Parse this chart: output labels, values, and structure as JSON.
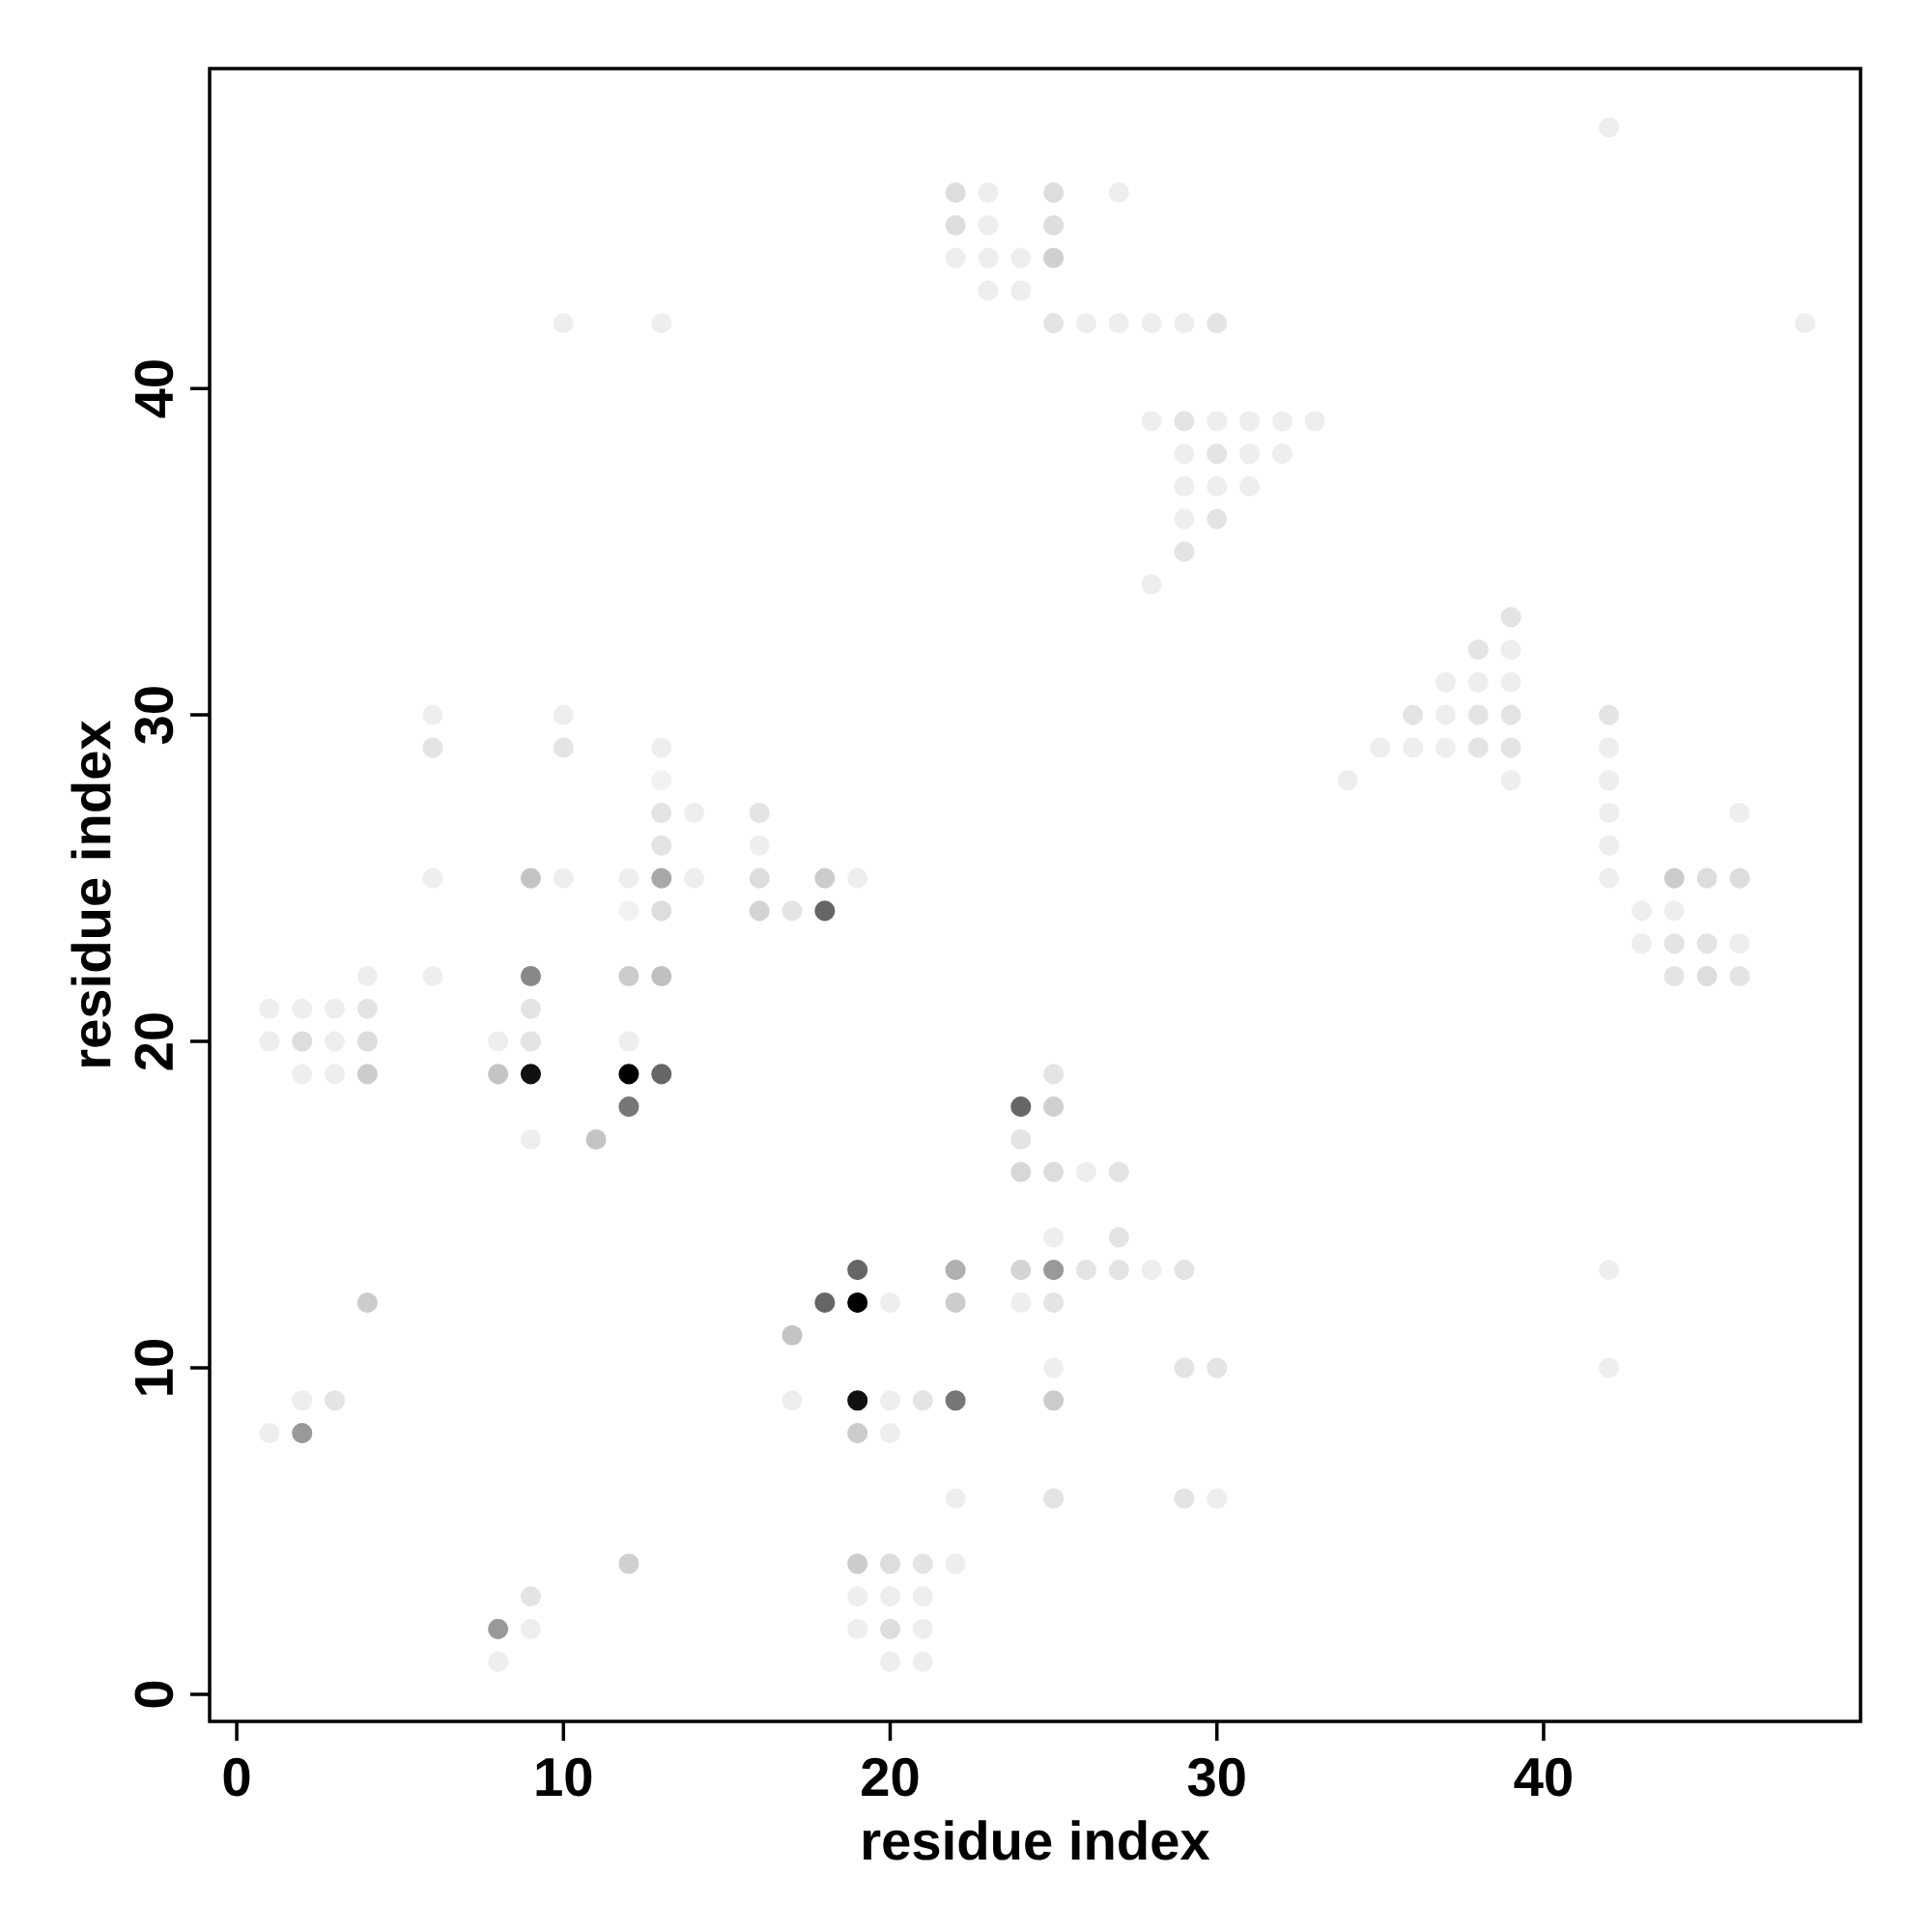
{
  "chart_data": {
    "type": "scatter",
    "xlabel": "residue index",
    "ylabel": "residue index",
    "xlim": [
      -0.83,
      49.7
    ],
    "ylim": [
      -0.83,
      49.8
    ],
    "xticks": [
      0,
      10,
      20,
      30,
      40
    ],
    "yticks": [
      0,
      10,
      20,
      30,
      40
    ],
    "x": [
      42,
      22,
      23,
      25,
      27,
      22,
      23,
      25,
      22,
      23,
      24,
      25,
      23,
      24,
      10,
      13,
      25,
      26,
      27,
      28,
      29,
      30,
      48,
      28,
      29,
      30,
      31,
      32,
      33,
      29,
      30,
      31,
      32,
      29,
      30,
      31,
      29,
      30,
      29,
      28,
      39,
      38,
      39,
      37,
      38,
      39,
      6,
      10,
      36,
      37,
      38,
      39,
      42,
      6,
      10,
      13,
      35,
      36,
      37,
      38,
      39,
      42,
      13,
      34,
      39,
      42,
      13,
      14,
      16,
      42,
      46,
      13,
      16,
      42,
      6,
      9,
      10,
      12,
      13,
      14,
      16,
      18,
      19,
      42,
      44,
      45,
      46,
      12,
      13,
      16,
      17,
      18,
      43,
      44,
      43,
      44,
      45,
      46,
      4,
      6,
      9,
      12,
      13,
      44,
      45,
      46,
      1,
      2,
      3,
      4,
      9,
      1,
      2,
      3,
      4,
      8,
      9,
      12,
      2,
      3,
      4,
      8,
      9,
      12,
      13,
      25,
      12,
      24,
      25,
      9,
      11,
      24,
      24,
      25,
      26,
      27,
      25,
      27,
      19,
      22,
      24,
      25,
      26,
      27,
      28,
      29,
      42,
      4,
      18,
      19,
      20,
      22,
      24,
      25,
      17,
      25,
      29,
      30,
      42,
      2,
      3,
      17,
      19,
      20,
      21,
      22,
      25,
      1,
      2,
      19,
      20,
      22,
      25,
      29,
      30,
      12,
      19,
      20,
      21,
      22,
      9,
      19,
      20,
      21,
      8,
      9,
      19,
      20,
      21,
      8,
      20,
      21
    ],
    "values": [
      48,
      46,
      46,
      46,
      46,
      45,
      45,
      45,
      44,
      44,
      44,
      44,
      43,
      43,
      42,
      42,
      42,
      42,
      42,
      42,
      42,
      42,
      42,
      39,
      39,
      39,
      39,
      39,
      39,
      38,
      38,
      38,
      38,
      37,
      37,
      37,
      36,
      36,
      35,
      34,
      33,
      32,
      32,
      31,
      31,
      31,
      30,
      30,
      30,
      30,
      30,
      30,
      30,
      29,
      29,
      29,
      29,
      29,
      29,
      29,
      29,
      29,
      28,
      28,
      28,
      28,
      27,
      27,
      27,
      27,
      27,
      26,
      26,
      26,
      25,
      25,
      25,
      25,
      25,
      25,
      25,
      25,
      25,
      25,
      25,
      25,
      25,
      24,
      24,
      24,
      24,
      24,
      24,
      24,
      23,
      23,
      23,
      23,
      22,
      22,
      22,
      22,
      22,
      22,
      22,
      22,
      21,
      21,
      21,
      21,
      21,
      20,
      20,
      20,
      20,
      20,
      20,
      20,
      19,
      19,
      19,
      19,
      19,
      19,
      19,
      19,
      18,
      18,
      18,
      17,
      17,
      17,
      16,
      16,
      16,
      16,
      14,
      14,
      13,
      13,
      13,
      13,
      13,
      13,
      13,
      13,
      13,
      12,
      12,
      12,
      12,
      12,
      12,
      12,
      11,
      10,
      10,
      10,
      10,
      9,
      9,
      9,
      9,
      9,
      9,
      9,
      9,
      8,
      8,
      8,
      8,
      6,
      6,
      6,
      6,
      4,
      4,
      4,
      4,
      4,
      3,
      3,
      3,
      3,
      2,
      2,
      2,
      2,
      2,
      1,
      1,
      1
    ],
    "colors": [
      "#eeeeee",
      "#dddddd",
      "#eeeeee",
      "#dddddd",
      "#eeeeee",
      "#dddddd",
      "#eeeeee",
      "#dddddd",
      "#eeeeee",
      "#eeeeee",
      "#eeeeee",
      "#d0d0d0",
      "#eeeeee",
      "#eeeeee",
      "#eeeeee",
      "#eeeeee",
      "#e4e4e4",
      "#eeeeee",
      "#eeeeee",
      "#eeeeee",
      "#eeeeee",
      "#e4e4e4",
      "#eeeeee",
      "#eeeeee",
      "#e4e4e4",
      "#eeeeee",
      "#eeeeee",
      "#eeeeee",
      "#eeeeee",
      "#eeeeee",
      "#e4e4e4",
      "#eeeeee",
      "#eeeeee",
      "#eeeeee",
      "#eeeeee",
      "#eeeeee",
      "#eeeeee",
      "#e4e4e4",
      "#e4e4e4",
      "#eeeeee",
      "#e4e4e4",
      "#e4e4e4",
      "#eeeeee",
      "#eeeeee",
      "#eeeeee",
      "#eeeeee",
      "#eeeeee",
      "#eeeeee",
      "#e4e4e4",
      "#eeeeee",
      "#e4e4e4",
      "#e4e4e4",
      "#e4e4e4",
      "#e4e4e4",
      "#e4e4e4",
      "#eeeeee",
      "#eeeeee",
      "#eeeeee",
      "#eeeeee",
      "#e4e4e4",
      "#e4e4e4",
      "#eeeeee",
      "#f2f2f2",
      "#eeeeee",
      "#eeeeee",
      "#eeeeee",
      "#e4e4e4",
      "#eeeeee",
      "#e4e4e4",
      "#eeeeee",
      "#eeeeee",
      "#e4e4e4",
      "#eeeeee",
      "#eeeeee",
      "#eeeeee",
      "#c4c4c4",
      "#eeeeee",
      "#eeeeee",
      "#a8a8a8",
      "#eeeeee",
      "#dddddd",
      "#cccccc",
      "#eeeeee",
      "#eeeeee",
      "#cccccc",
      "#dddddd",
      "#dddddd",
      "#f2f2f2",
      "#dddddd",
      "#d4d4d4",
      "#e4e4e4",
      "#666666",
      "#eeeeee",
      "#eeeeee",
      "#eeeeee",
      "#e4e4e4",
      "#e4e4e4",
      "#eeeeee",
      "#eeeeee",
      "#eeeeee",
      "#888888",
      "#cccccc",
      "#c0c0c0",
      "#e4e4e4",
      "#dddddd",
      "#e4e4e4",
      "#eeeeee",
      "#eeeeee",
      "#eeeeee",
      "#e4e4e4",
      "#e4e4e4",
      "#eeeeee",
      "#dddddd",
      "#eeeeee",
      "#dddddd",
      "#eeeeee",
      "#e4e4e4",
      "#eeeeee",
      "#eeeeee",
      "#eeeeee",
      "#cccccc",
      "#c4c4c4",
      "#111111",
      "#000000",
      "#666666",
      "#e4e4e4",
      "#777777",
      "#666666",
      "#d0d0d0",
      "#eeeeee",
      "#c4c4c4",
      "#e4e4e4",
      "#d8d8d8",
      "#dddddd",
      "#eeeeee",
      "#e4e4e4",
      "#eeeeee",
      "#e4e4e4",
      "#666666",
      "#b0b0b0",
      "#d4d4d4",
      "#999999",
      "#e4e4e4",
      "#e4e4e4",
      "#eeeeee",
      "#e4e4e4",
      "#eeeeee",
      "#cccccc",
      "#666666",
      "#000000",
      "#eeeeee",
      "#cccccc",
      "#eeeeee",
      "#e4e4e4",
      "#c4c4c4",
      "#eeeeee",
      "#e4e4e4",
      "#e4e4e4",
      "#eeeeee",
      "#eeeeee",
      "#e4e4e4",
      "#eeeeee",
      "#111111",
      "#eeeeee",
      "#e4e4e4",
      "#777777",
      "#cccccc",
      "#eeeeee",
      "#999999",
      "#cccccc",
      "#eeeeee",
      "#eeeeee",
      "#e4e4e4",
      "#e4e4e4",
      "#eeeeee",
      "#d0d0d0",
      "#cccccc",
      "#dddddd",
      "#e4e4e4",
      "#eeeeee",
      "#e4e4e4",
      "#eeeeee",
      "#eeeeee",
      "#eeeeee",
      "#999999",
      "#eeeeee",
      "#eeeeee",
      "#dddddd",
      "#eeeeee",
      "#eeeeee",
      "#eeeeee",
      "#eeeeee"
    ]
  }
}
